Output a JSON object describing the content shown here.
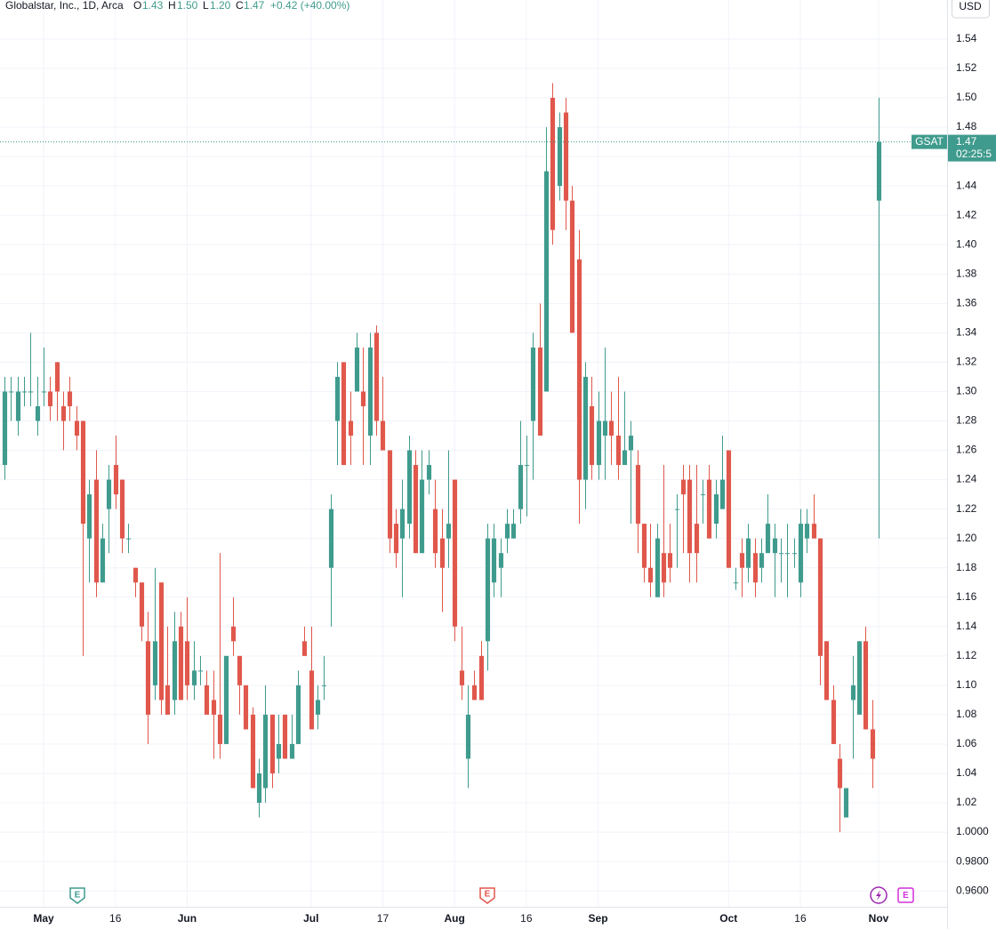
{
  "chart_data": {
    "type": "candlestick",
    "title": "Globalstar, Inc., 1D, Arca",
    "legend": {
      "o_label": "O",
      "o": "1.43",
      "h_label": "H",
      "h": "1.50",
      "l_label": "L",
      "l": "1.20",
      "c_label": "C",
      "c": "1.47",
      "change": "+0.42 (+40.00%)"
    },
    "currency": "USD",
    "price_tag": {
      "symbol": "GSAT",
      "price": "1.47",
      "countdown": "02:25:5"
    },
    "events": [
      {
        "label": "E"
      },
      {
        "label": "E"
      },
      {
        "label": "E"
      }
    ],
    "up_color": "#3f9b8d",
    "down_color": "#e0574c",
    "grid": true,
    "ylim": [
      0.9492,
      1.5666
    ],
    "yticks": [
      {
        "value": 0.96,
        "label": "0.9600"
      },
      {
        "value": 0.98,
        "label": "0.9800"
      },
      {
        "value": 1.0,
        "label": "1.0000"
      },
      1.02,
      1.04,
      1.06,
      1.08,
      {
        "value": 1.1,
        "label": "1.10"
      },
      1.12,
      1.14,
      1.16,
      1.18,
      {
        "value": 1.2,
        "label": "1.20"
      },
      1.22,
      1.24,
      1.26,
      1.28,
      {
        "value": 1.3,
        "label": "1.30"
      },
      1.32,
      1.34,
      1.36,
      1.38,
      {
        "value": 1.4,
        "label": "1.40"
      },
      1.42,
      1.44,
      1.46,
      1.48,
      {
        "value": 1.5,
        "label": "1.50"
      },
      1.52,
      1.54
    ],
    "categories": [
      null,
      null,
      null,
      null,
      null,
      null,
      "May",
      null,
      null,
      null,
      null,
      null,
      null,
      null,
      null,
      null,
      null,
      "16",
      null,
      null,
      null,
      null,
      null,
      null,
      null,
      null,
      null,
      null,
      "Jun",
      null,
      null,
      null,
      null,
      null,
      null,
      null,
      null,
      null,
      null,
      null,
      null,
      null,
      null,
      null,
      null,
      null,
      null,
      "Jul",
      null,
      null,
      null,
      null,
      null,
      null,
      null,
      null,
      null,
      null,
      "17",
      null,
      null,
      null,
      null,
      null,
      null,
      null,
      null,
      null,
      null,
      "Aug",
      null,
      null,
      null,
      null,
      null,
      null,
      null,
      null,
      null,
      null,
      "16",
      null,
      null,
      null,
      null,
      null,
      null,
      null,
      null,
      null,
      null,
      "Sep",
      null,
      null,
      null,
      null,
      null,
      null,
      null,
      null,
      null,
      null,
      null,
      null,
      null,
      null,
      null,
      null,
      null,
      null,
      null,
      "Oct",
      null,
      null,
      null,
      null,
      null,
      null,
      null,
      null,
      null,
      null,
      "16",
      null,
      null,
      null,
      null,
      null,
      null,
      null,
      null,
      null,
      null,
      null,
      "Nov"
    ],
    "open": [
      1.25,
      1.3,
      1.28,
      1.3,
      1.3,
      1.28,
      1.3,
      1.3,
      1.32,
      1.29,
      1.3,
      1.28,
      1.28,
      1.2,
      1.24,
      1.17,
      1.22,
      1.25,
      1.24,
      1.2,
      1.18,
      1.17,
      1.13,
      1.1,
      1.17,
      1.1,
      1.09,
      1.14,
      1.13,
      1.1,
      1.11,
      1.1,
      1.09,
      1.08,
      1.06,
      1.14,
      1.12,
      1.1,
      1.08,
      1.02,
      1.03,
      1.08,
      1.05,
      1.08,
      1.05,
      1.06,
      1.13,
      1.11,
      1.08,
      1.1,
      1.18,
      1.28,
      1.32,
      1.28,
      1.3,
      1.3,
      1.27,
      1.34,
      1.28,
      1.26,
      1.21,
      1.2,
      1.21,
      1.25,
      1.19,
      1.24,
      1.22,
      1.2,
      1.2,
      1.24,
      1.11,
      1.05,
      1.1,
      1.12,
      1.13,
      1.17,
      1.18,
      1.2,
      1.2,
      1.22,
      1.25,
      1.28,
      1.33,
      1.3,
      1.5,
      1.44,
      1.49,
      1.43,
      1.39,
      1.24,
      1.29,
      1.25,
      1.27,
      1.28,
      1.27,
      1.25,
      1.26,
      1.25,
      1.21,
      1.18,
      1.16,
      1.19,
      1.19,
      1.22,
      1.24,
      1.24,
      1.21,
      1.23,
      1.24,
      1.21,
      1.22,
      1.26,
      1.17,
      1.19,
      1.18,
      1.19,
      1.18,
      1.19,
      1.19,
      1.19,
      1.19,
      1.19,
      1.17,
      1.2,
      1.21,
      1.2,
      1.13,
      1.09,
      1.05,
      1.01,
      1.09,
      1.08,
      1.13,
      1.07,
      1.43
    ],
    "high": [
      1.31,
      1.31,
      1.31,
      1.31,
      1.34,
      1.31,
      1.33,
      1.31,
      1.32,
      1.3,
      1.31,
      1.29,
      1.28,
      1.24,
      1.26,
      1.21,
      1.25,
      1.27,
      1.24,
      1.21,
      1.18,
      1.17,
      1.15,
      1.18,
      1.17,
      1.14,
      1.15,
      1.15,
      1.16,
      1.13,
      1.12,
      1.11,
      1.11,
      1.19,
      1.12,
      1.16,
      1.12,
      1.1,
      1.085,
      1.05,
      1.1,
      1.08,
      1.08,
      1.08,
      1.08,
      1.11,
      1.14,
      1.14,
      1.1,
      1.12,
      1.23,
      1.32,
      1.32,
      1.3,
      1.34,
      1.33,
      1.34,
      1.345,
      1.31,
      1.26,
      1.22,
      1.24,
      1.27,
      1.26,
      1.26,
      1.26,
      1.24,
      1.22,
      1.26,
      1.24,
      1.14,
      1.1,
      1.11,
      1.13,
      1.21,
      1.21,
      1.2,
      1.22,
      1.22,
      1.28,
      1.27,
      1.34,
      1.36,
      1.48,
      1.51,
      1.49,
      1.5,
      1.44,
      1.41,
      1.32,
      1.31,
      1.3,
      1.33,
      1.3,
      1.31,
      1.3,
      1.28,
      1.26,
      1.21,
      1.21,
      1.21,
      1.25,
      1.21,
      1.23,
      1.25,
      1.25,
      1.25,
      1.24,
      1.25,
      1.24,
      1.27,
      1.26,
      1.18,
      1.2,
      1.21,
      1.2,
      1.2,
      1.23,
      1.21,
      1.2,
      1.21,
      1.2,
      1.22,
      1.22,
      1.23,
      1.2,
      1.13,
      1.1,
      1.06,
      1.03,
      1.12,
      1.13,
      1.14,
      1.09,
      1.5
    ],
    "low": [
      1.24,
      1.28,
      1.27,
      1.29,
      1.29,
      1.27,
      1.29,
      1.28,
      1.28,
      1.26,
      1.28,
      1.26,
      1.12,
      1.17,
      1.16,
      1.17,
      1.19,
      1.22,
      1.19,
      1.19,
      1.16,
      1.13,
      1.06,
      1.09,
      1.08,
      1.08,
      1.08,
      1.09,
      1.09,
      1.09,
      1.1,
      1.08,
      1.05,
      1.05,
      1.06,
      1.12,
      1.08,
      1.07,
      1.03,
      1.01,
      1.02,
      1.03,
      1.04,
      1.05,
      1.05,
      1.06,
      1.12,
      1.07,
      1.07,
      1.09,
      1.14,
      1.25,
      1.25,
      1.25,
      1.3,
      1.25,
      1.25,
      1.27,
      1.26,
      1.19,
      1.18,
      1.16,
      1.2,
      1.19,
      1.19,
      1.23,
      1.18,
      1.15,
      1.18,
      1.13,
      1.09,
      1.03,
      1.09,
      1.09,
      1.11,
      1.16,
      1.16,
      1.19,
      1.2,
      1.21,
      1.215,
      1.24,
      1.27,
      1.3,
      1.4,
      1.43,
      1.41,
      1.34,
      1.21,
      1.22,
      1.24,
      1.24,
      1.24,
      1.25,
      1.24,
      1.25,
      1.21,
      1.19,
      1.17,
      1.16,
      1.16,
      1.16,
      1.17,
      1.18,
      1.19,
      1.17,
      1.17,
      1.21,
      1.2,
      1.2,
      1.22,
      1.18,
      1.165,
      1.16,
      1.17,
      1.16,
      1.17,
      1.19,
      1.16,
      1.17,
      1.16,
      1.18,
      1.16,
      1.19,
      1.2,
      1.1,
      1.09,
      1.06,
      1.0,
      1.01,
      1.05,
      1.08,
      1.07,
      1.03,
      1.2
    ],
    "close": [
      1.3,
      1.3,
      1.3,
      1.3,
      1.3,
      1.29,
      1.3,
      1.29,
      1.3,
      1.28,
      1.29,
      1.27,
      1.21,
      1.23,
      1.17,
      1.2,
      1.24,
      1.23,
      1.2,
      1.2,
      1.17,
      1.14,
      1.08,
      1.13,
      1.09,
      1.08,
      1.13,
      1.09,
      1.1,
      1.11,
      1.11,
      1.08,
      1.08,
      1.06,
      1.12,
      1.13,
      1.1,
      1.07,
      1.03,
      1.04,
      1.08,
      1.04,
      1.06,
      1.05,
      1.06,
      1.1,
      1.12,
      1.07,
      1.09,
      1.1,
      1.22,
      1.31,
      1.25,
      1.27,
      1.33,
      1.29,
      1.33,
      1.28,
      1.26,
      1.2,
      1.19,
      1.22,
      1.26,
      1.19,
      1.24,
      1.25,
      1.19,
      1.18,
      1.21,
      1.14,
      1.1,
      1.08,
      1.09,
      1.09,
      1.2,
      1.2,
      1.19,
      1.21,
      1.21,
      1.25,
      1.25,
      1.33,
      1.27,
      1.45,
      1.41,
      1.48,
      1.43,
      1.34,
      1.24,
      1.31,
      1.25,
      1.28,
      1.28,
      1.27,
      1.25,
      1.26,
      1.27,
      1.21,
      1.18,
      1.17,
      1.2,
      1.17,
      1.18,
      1.22,
      1.23,
      1.19,
      1.19,
      1.23,
      1.2,
      1.23,
      1.24,
      1.18,
      1.17,
      1.18,
      1.2,
      1.17,
      1.19,
      1.21,
      1.2,
      1.19,
      1.19,
      1.19,
      1.21,
      1.21,
      1.2,
      1.12,
      1.09,
      1.06,
      1.03,
      1.03,
      1.1,
      1.13,
      1.07,
      1.05,
      1.47
    ]
  }
}
